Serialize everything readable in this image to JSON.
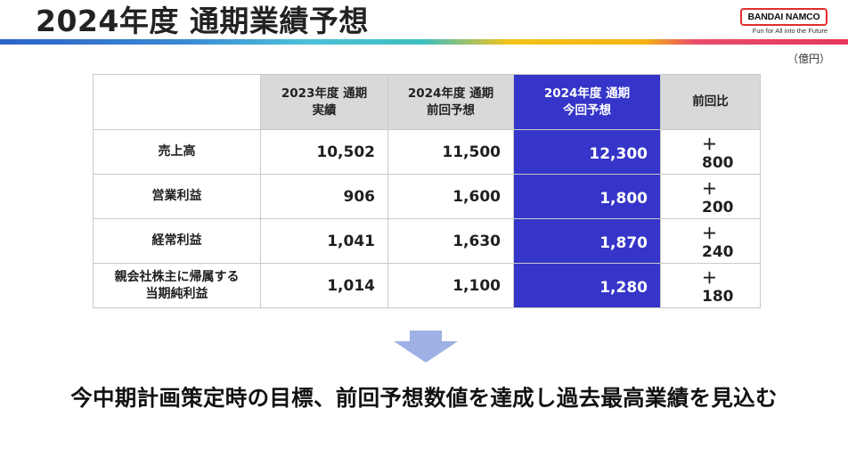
{
  "title": "2024年度 通期業績予想",
  "brand": {
    "name": "BANDAI NAMCO",
    "tagline": "Fun for All into the Future",
    "accent": "#e32d2d"
  },
  "unit": "（億円）",
  "colors": {
    "highlight": "#3535c9",
    "header_bg": "#d9d9d9"
  },
  "table": {
    "columns": [
      "",
      "2023年度 通期\n実績",
      "2024年度 通期\n前回予想",
      "2024年度 通期\n今回予想",
      "前回比"
    ],
    "rows": [
      {
        "label": "売上高",
        "cells": [
          "10,502",
          "11,500",
          "12,300",
          "＋800"
        ]
      },
      {
        "label": "営業利益",
        "cells": [
          "906",
          "1,600",
          "1,800",
          "＋200"
        ]
      },
      {
        "label": "経常利益",
        "cells": [
          "1,041",
          "1,630",
          "1,870",
          "＋240"
        ]
      },
      {
        "label": "親会社株主に帰属する\n当期純利益",
        "cells": [
          "1,014",
          "1,100",
          "1,280",
          "＋180"
        ]
      }
    ]
  },
  "headline": "今中期計画策定時の目標、前回予想数値を達成し過去最高業績を見込む"
}
